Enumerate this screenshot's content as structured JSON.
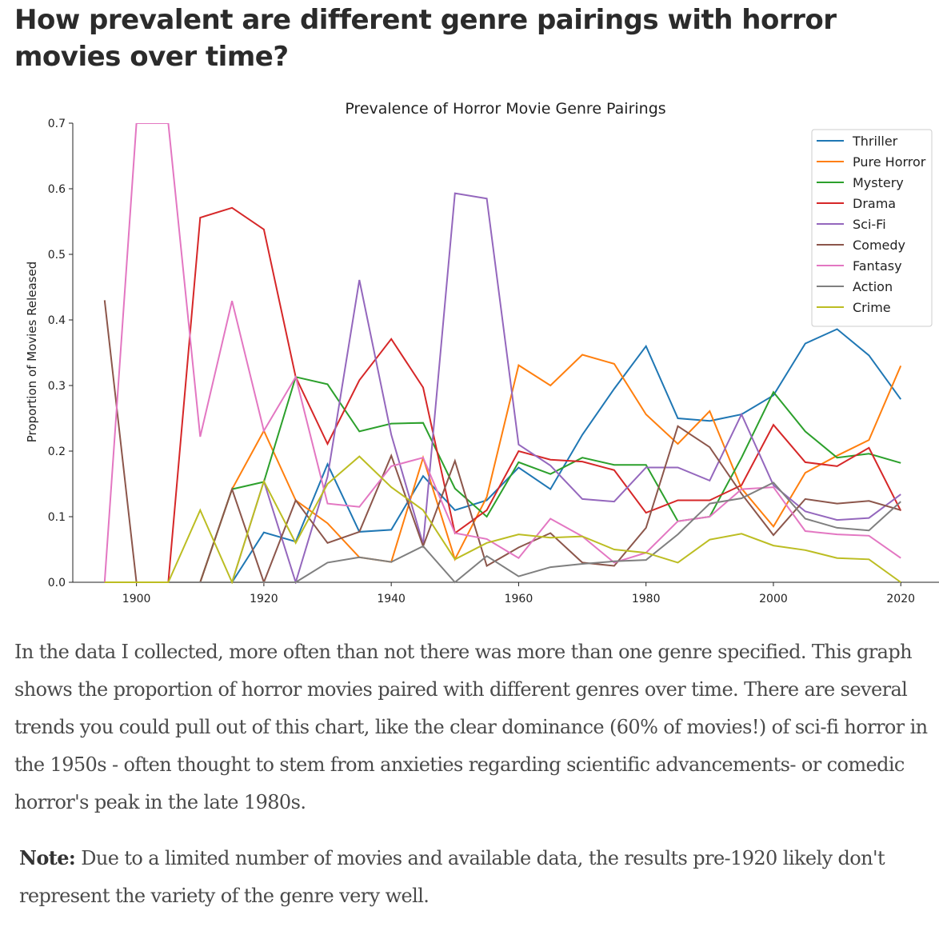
{
  "article": {
    "title": "How prevalent are different genre pairings with horror movies over time?",
    "paragraph": "In the data I collected, more often than not there was more than one genre specified.  This graph shows the proportion of horror movies paired with different genres over time. There are several trends you could pull out of this chart, like the clear dominance (60% of movies!) of sci-fi horror in the 1950s - often thought to stem from anxieties regarding scientific advancements- or comedic horror's peak in the late 1980s.",
    "note_label": "Note:",
    "note_text": " Due to a limited number of movies and available data, the results pre-1920 likely don't represent the variety of the genre very well."
  },
  "chart_data": {
    "type": "line",
    "title": "Prevalence of Horror Movie Genre Pairings",
    "xlabel": "",
    "ylabel": "Proportion of Movies Released",
    "xlim": [
      1890,
      2026
    ],
    "ylim": [
      0,
      0.7
    ],
    "xticks": [
      1900,
      1920,
      1940,
      1960,
      1980,
      2000,
      2020
    ],
    "yticks": [
      0.0,
      0.1,
      0.2,
      0.3,
      0.4,
      0.5,
      0.6,
      0.7
    ],
    "grid": false,
    "legend": "top-right",
    "x": [
      1895,
      1900,
      1905,
      1910,
      1915,
      1920,
      1925,
      1930,
      1935,
      1940,
      1945,
      1950,
      1955,
      1960,
      1965,
      1970,
      1975,
      1980,
      1985,
      1990,
      1995,
      2000,
      2005,
      2010,
      2015,
      2020
    ],
    "series": [
      {
        "name": "Thriller",
        "color": "#1f77b4",
        "values": [
          0,
          0,
          0,
          0,
          0,
          0.076,
          0.062,
          0.18,
          0.077,
          0.08,
          0.162,
          0.11,
          0.125,
          0.175,
          0.142,
          0.225,
          0.295,
          0.36,
          0.25,
          0.246,
          0.256,
          0.285,
          0.364,
          0.386,
          0.346,
          0.279
        ]
      },
      {
        "name": "Pure Horror",
        "color": "#ff7f0e",
        "values": [
          0,
          0,
          0,
          0,
          0.142,
          0.231,
          0.125,
          0.09,
          0.038,
          0.031,
          0.19,
          0.035,
          0.13,
          0.331,
          0.3,
          0.347,
          0.333,
          0.256,
          0.211,
          0.261,
          0.143,
          0.085,
          0.167,
          0.193,
          0.217,
          0.33
        ]
      },
      {
        "name": "Mystery",
        "color": "#2ca02c",
        "values": [
          0,
          0,
          0,
          0,
          0.142,
          0.153,
          0.313,
          0.302,
          0.23,
          0.242,
          0.243,
          0.143,
          0.1,
          0.183,
          0.165,
          0.19,
          0.179,
          0.179,
          0.093,
          0.1,
          0.19,
          0.29,
          0.23,
          0.19,
          0.196,
          0.182
        ]
      },
      {
        "name": "Drama",
        "color": "#d62728",
        "values": [
          0,
          0,
          0,
          0.556,
          0.571,
          0.538,
          0.313,
          0.211,
          0.308,
          0.371,
          0.297,
          0.075,
          0.11,
          0.2,
          0.187,
          0.184,
          0.171,
          0.106,
          0.125,
          0.125,
          0.148,
          0.24,
          0.183,
          0.177,
          0.205,
          0.109
        ]
      },
      {
        "name": "Sci-Fi",
        "color": "#9467bd",
        "values": [
          0,
          0,
          0,
          0,
          0,
          0.154,
          0,
          0.161,
          0.461,
          0.225,
          0.058,
          0.593,
          0.585,
          0.21,
          0.178,
          0.127,
          0.123,
          0.175,
          0.175,
          0.155,
          0.256,
          0.148,
          0.108,
          0.095,
          0.098,
          0.134
        ]
      },
      {
        "name": "Comedy",
        "color": "#8c564b",
        "values": [
          0.43,
          0,
          0,
          0,
          0.142,
          0,
          0.125,
          0.06,
          0.077,
          0.193,
          0.055,
          0.185,
          0.025,
          0.053,
          0.075,
          0.03,
          0.025,
          0.083,
          0.238,
          0.206,
          0.135,
          0.072,
          0.127,
          0.12,
          0.124,
          0.11
        ]
      },
      {
        "name": "Fantasy",
        "color": "#e377c2",
        "values": [
          0,
          0.7,
          0.7,
          0.222,
          0.429,
          0.231,
          0.313,
          0.12,
          0.115,
          0.177,
          0.19,
          0.075,
          0.066,
          0.037,
          0.097,
          0.07,
          0.03,
          0.045,
          0.093,
          0.1,
          0.142,
          0.145,
          0.078,
          0.073,
          0.071,
          0.037
        ]
      },
      {
        "name": "Action",
        "color": "#7f7f7f",
        "values": [
          0,
          0,
          0,
          0,
          0,
          0,
          0,
          0.03,
          0.038,
          0.031,
          0.055,
          0,
          0.04,
          0.009,
          0.023,
          0.028,
          0.032,
          0.034,
          0.073,
          0.12,
          0.128,
          0.152,
          0.097,
          0.083,
          0.079,
          0.123
        ]
      },
      {
        "name": "Crime",
        "color": "#bcbd22",
        "values": [
          0,
          0,
          0,
          0.11,
          0,
          0.154,
          0.06,
          0.15,
          0.192,
          0.145,
          0.11,
          0.035,
          0.06,
          0.073,
          0.068,
          0.07,
          0.05,
          0.045,
          0.03,
          0.065,
          0.074,
          0.056,
          0.049,
          0.037,
          0.035,
          0
        ]
      }
    ]
  }
}
